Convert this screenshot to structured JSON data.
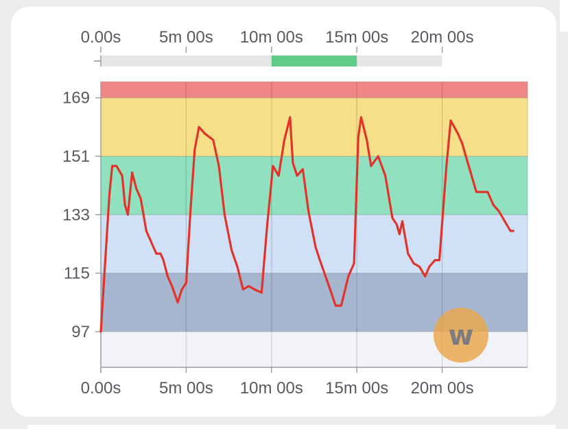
{
  "chart_data": {
    "type": "line",
    "title": "",
    "xlabel": "",
    "ylabel": "",
    "xlim": [
      0,
      1500
    ],
    "ylim": [
      86,
      174
    ],
    "x_tick_labels": [
      "0.00s",
      "5m 00s",
      "10m 00s",
      "15m 00s",
      "20m 00s"
    ],
    "x_tick_values": [
      0,
      300,
      600,
      900,
      1200
    ],
    "y_tick_labels": [
      "97",
      "115",
      "133",
      "151",
      "169"
    ],
    "y_tick_values": [
      97,
      115,
      133,
      151,
      169
    ],
    "zones": [
      {
        "from": 86,
        "to": 97,
        "color": "#f2f3f6"
      },
      {
        "from": 97,
        "to": 115,
        "color": "#a6b6cf"
      },
      {
        "from": 115,
        "to": 133,
        "color": "#d0e1f7"
      },
      {
        "from": 133,
        "to": 151,
        "color": "#91e0bf"
      },
      {
        "from": 151,
        "to": 169,
        "color": "#f7df8a"
      },
      {
        "from": 169,
        "to": 174,
        "color": "#ee8683"
      }
    ],
    "series": [
      {
        "color": "#e0342a",
        "points": [
          [
            0,
            97
          ],
          [
            15,
            118
          ],
          [
            30,
            139
          ],
          [
            40,
            148
          ],
          [
            55,
            148
          ],
          [
            75,
            145
          ],
          [
            85,
            136
          ],
          [
            95,
            133
          ],
          [
            110,
            146
          ],
          [
            125,
            141
          ],
          [
            140,
            138
          ],
          [
            160,
            128
          ],
          [
            180,
            124
          ],
          [
            195,
            121
          ],
          [
            210,
            121
          ],
          [
            220,
            119
          ],
          [
            235,
            114
          ],
          [
            250,
            111
          ],
          [
            270,
            106
          ],
          [
            285,
            110
          ],
          [
            300,
            112
          ],
          [
            315,
            134
          ],
          [
            330,
            153
          ],
          [
            345,
            160
          ],
          [
            365,
            158
          ],
          [
            395,
            156
          ],
          [
            415,
            148
          ],
          [
            435,
            133
          ],
          [
            460,
            122
          ],
          [
            480,
            117
          ],
          [
            500,
            110
          ],
          [
            520,
            111
          ],
          [
            540,
            110
          ],
          [
            565,
            109
          ],
          [
            585,
            130
          ],
          [
            605,
            148
          ],
          [
            625,
            145
          ],
          [
            645,
            156
          ],
          [
            665,
            163
          ],
          [
            675,
            149
          ],
          [
            690,
            145
          ],
          [
            710,
            147
          ],
          [
            730,
            134
          ],
          [
            755,
            123
          ],
          [
            770,
            119
          ],
          [
            790,
            114
          ],
          [
            810,
            109
          ],
          [
            825,
            105
          ],
          [
            845,
            105
          ],
          [
            870,
            114
          ],
          [
            890,
            118
          ],
          [
            905,
            157
          ],
          [
            915,
            163
          ],
          [
            935,
            156
          ],
          [
            950,
            148
          ],
          [
            975,
            151
          ],
          [
            1000,
            145
          ],
          [
            1025,
            132
          ],
          [
            1040,
            130
          ],
          [
            1050,
            127
          ],
          [
            1060,
            131
          ],
          [
            1080,
            121
          ],
          [
            1100,
            118
          ],
          [
            1120,
            117
          ],
          [
            1140,
            114
          ],
          [
            1155,
            117
          ],
          [
            1175,
            119
          ],
          [
            1190,
            119
          ],
          [
            1215,
            148
          ],
          [
            1230,
            162
          ],
          [
            1255,
            158
          ],
          [
            1270,
            155
          ],
          [
            1290,
            149
          ],
          [
            1320,
            140
          ],
          [
            1340,
            140
          ],
          [
            1360,
            140
          ],
          [
            1380,
            136
          ],
          [
            1400,
            134
          ],
          [
            1420,
            131
          ],
          [
            1440,
            128
          ],
          [
            1450,
            128
          ]
        ]
      }
    ]
  },
  "navigator": {
    "range_start": 600,
    "range_end": 900,
    "track_color": "#e6e6e6",
    "selected_color": "#5fcb86"
  },
  "logo": {
    "letter": "w",
    "badge_color": "#e9a64a"
  }
}
